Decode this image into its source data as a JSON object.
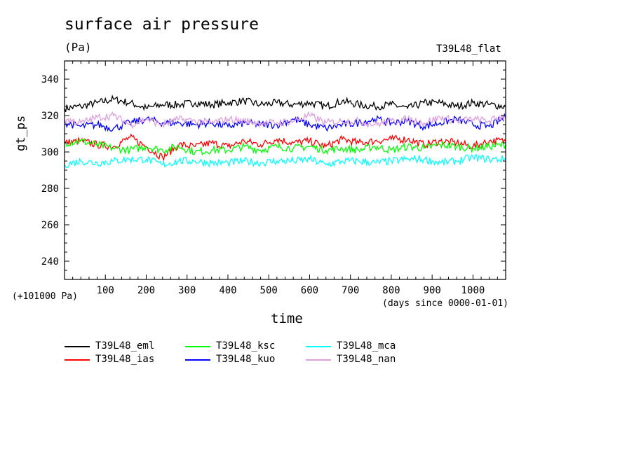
{
  "chart_data": {
    "type": "line",
    "title": "surface air pressure",
    "units": "(Pa)",
    "run_label": "T39L48_flat",
    "ylabel": "gt_ps",
    "xlabel": "time",
    "x_units": "(days since 0000-01-01)",
    "y_offset_note": "(+101000 Pa)",
    "xlim": [
      0,
      1080
    ],
    "ylim": [
      230,
      350
    ],
    "x_ticks": [
      100,
      200,
      300,
      400,
      500,
      600,
      700,
      800,
      900,
      1000
    ],
    "y_ticks": [
      240,
      260,
      280,
      300,
      320,
      340
    ],
    "x_tick_labels": [
      "100",
      "200",
      "300",
      "400",
      "500",
      "600",
      "700",
      "800",
      "900",
      "1000"
    ],
    "y_tick_labels": [
      "240",
      "260",
      "280",
      "300",
      "320",
      "340"
    ],
    "x": [
      0,
      40,
      80,
      120,
      160,
      200,
      240,
      280,
      320,
      360,
      400,
      440,
      480,
      520,
      560,
      600,
      640,
      680,
      720,
      760,
      800,
      840,
      880,
      920,
      960,
      1000,
      1040,
      1080
    ],
    "series": [
      {
        "name": "T39L48_eml",
        "color": "#000000",
        "values": [
          324,
          325,
          327,
          329,
          327,
          324,
          326,
          326,
          327,
          326,
          327,
          328,
          326,
          327,
          326,
          327,
          325,
          328,
          326,
          325,
          326,
          324,
          327,
          327,
          325,
          327,
          326,
          325
        ]
      },
      {
        "name": "T39L48_ias",
        "color": "#ff0000",
        "values": [
          305,
          306,
          304,
          303,
          308,
          303,
          297,
          304,
          303,
          305,
          303,
          306,
          304,
          307,
          305,
          306,
          303,
          307,
          305,
          306,
          307,
          307,
          304,
          306,
          305,
          303,
          306,
          306
        ]
      },
      {
        "name": "T39L48_ksc",
        "color": "#00ff00",
        "values": [
          305,
          306,
          304,
          302,
          301,
          303,
          301,
          303,
          300,
          301,
          301,
          303,
          301,
          303,
          302,
          303,
          301,
          302,
          301,
          303,
          301,
          303,
          302,
          304,
          303,
          302,
          303,
          304
        ]
      },
      {
        "name": "T39L48_kuo",
        "color": "#0000ff",
        "values": [
          316,
          314,
          315,
          313,
          316,
          318,
          316,
          316,
          315,
          316,
          314,
          316,
          315,
          315,
          318,
          315,
          313,
          315,
          316,
          318,
          316,
          317,
          314,
          316,
          318,
          315,
          314,
          319
        ]
      },
      {
        "name": "T39L48_mca",
        "color": "#00ffff",
        "values": [
          293,
          295,
          294,
          295,
          296,
          296,
          293,
          295,
          295,
          294,
          294,
          295,
          294,
          295,
          295,
          296,
          293,
          295,
          295,
          294,
          295,
          296,
          296,
          294,
          295,
          297,
          296,
          296
        ]
      },
      {
        "name": "T39L48_nan",
        "color": "#dda0dd",
        "values": [
          318,
          316,
          319,
          320,
          315,
          318,
          315,
          318,
          317,
          316,
          318,
          317,
          316,
          316,
          317,
          320,
          316,
          317,
          317,
          315,
          317,
          318,
          316,
          319,
          317,
          318,
          317,
          320
        ]
      }
    ],
    "legend_position": "bottom-left"
  }
}
